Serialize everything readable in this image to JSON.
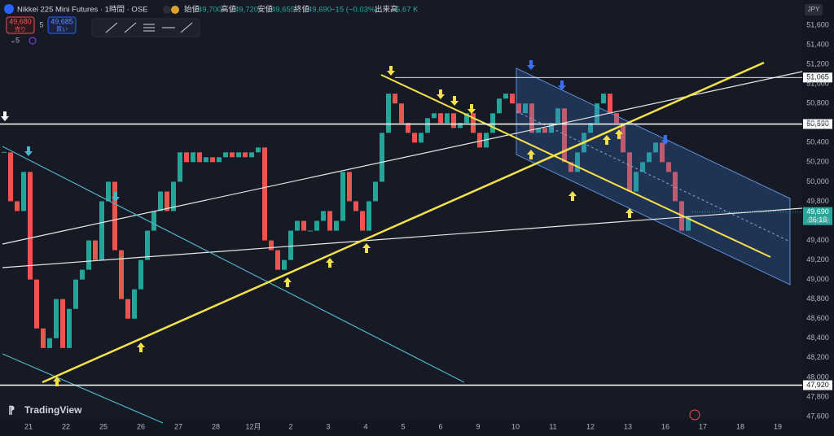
{
  "header": {
    "symbol": "Nikkei 225 Mini Futures · 1時間 · OSE",
    "open_label": "始値",
    "open": "49,700",
    "high_label": "高値",
    "high": "49,720",
    "low_label": "安値",
    "low": "49,655",
    "close_label": "終値",
    "close": "49,690",
    "change": "−15 (−0.03%)",
    "volume_label": "出来高",
    "volume": "5.67 K",
    "sell_price": "49,680",
    "sell_label": "売り",
    "spread": "5",
    "buy_price": "49,685",
    "buy_label": "買い",
    "indicator_count": "5",
    "currency": "JPY",
    "brand": "TradingView"
  },
  "chart_data": {
    "type": "candlestick",
    "up_color": "#26a69a",
    "down_color": "#ef5350",
    "grid": false,
    "categories": [
      "21",
      "22",
      "25",
      "26",
      "27",
      "28",
      "12月",
      "2",
      "3",
      "4",
      "5",
      "6",
      "9",
      "10",
      "11",
      "12",
      "13",
      "16",
      "17",
      "18",
      "19"
    ],
    "closes": [
      50300,
      49800,
      49700,
      50100,
      49000,
      48500,
      48300,
      48400,
      48800,
      48300,
      48700,
      49000,
      49100,
      49400,
      49200,
      49800,
      50000,
      49300,
      48800,
      48600,
      48900,
      49200,
      49500,
      49700,
      49900,
      49700,
      50000,
      50300,
      50200,
      50300,
      50200,
      50250,
      50200,
      50250,
      50300,
      50250,
      50300,
      50250,
      50300,
      50350,
      49400,
      49300,
      49100,
      49200,
      49500,
      49600,
      49500,
      49500,
      49600,
      49700,
      49500,
      49600,
      50100,
      49800,
      49700,
      49500,
      49800,
      50000,
      50500,
      50900,
      50800,
      50600,
      50500,
      50400,
      50500,
      50650,
      50700,
      50600,
      50700,
      50550,
      50600,
      50700,
      50500,
      50350,
      50500,
      50700,
      50850,
      50900,
      50800,
      50700,
      50800,
      50500,
      50550,
      50500,
      50600,
      50750,
      50200,
      50100,
      50300,
      50500,
      50600,
      50800,
      50900,
      50700,
      50600,
      50300,
      49900,
      50100,
      50200,
      50300,
      50400,
      50200,
      50100,
      49800,
      49500,
      49650
    ],
    "ylim": [
      47600,
      51600
    ],
    "yticks": [
      {
        "value": 51600,
        "label": "51,600"
      },
      {
        "value": 51400,
        "label": "51,400"
      },
      {
        "value": 51200,
        "label": "51,200"
      },
      {
        "value": 51000,
        "label": "51,000"
      },
      {
        "value": 50800,
        "label": "50,800"
      },
      {
        "value": 50600,
        "label": "50,600"
      },
      {
        "value": 50400,
        "label": "50,400"
      },
      {
        "value": 50200,
        "label": "50,200"
      },
      {
        "value": 50000,
        "label": "50,000"
      },
      {
        "value": 49800,
        "label": "49,800"
      },
      {
        "value": 49600,
        "label": "49,600"
      },
      {
        "value": 49400,
        "label": "49,400"
      },
      {
        "value": 49200,
        "label": "49,200"
      },
      {
        "value": 49000,
        "label": "49,000"
      },
      {
        "value": 48800,
        "label": "48,800"
      },
      {
        "value": 48600,
        "label": "48,600"
      },
      {
        "value": 48400,
        "label": "48,400"
      },
      {
        "value": 48200,
        "label": "48,200"
      },
      {
        "value": 48000,
        "label": "48,000"
      },
      {
        "value": 47800,
        "label": "47,800"
      },
      {
        "value": 47600,
        "label": "47,600"
      }
    ],
    "levels": [
      {
        "value": 51065,
        "label": "51,065"
      },
      {
        "value": 50590,
        "label": "50,590"
      },
      {
        "value": 47920,
        "label": "47,920"
      }
    ],
    "last_price": {
      "value": 49690,
      "label": "49,690",
      "countdown": "36:18"
    }
  }
}
